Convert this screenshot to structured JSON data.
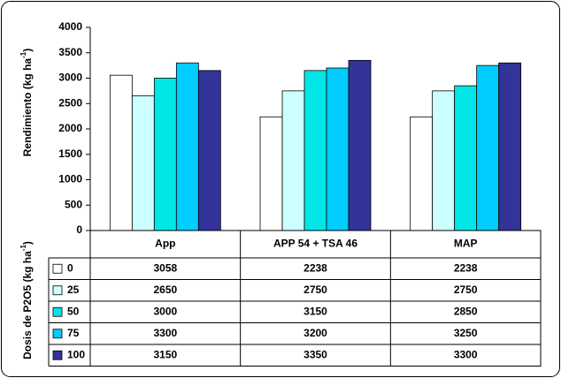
{
  "chart_data": {
    "type": "bar",
    "y_label": {
      "text": "Rendimiento (kg ha",
      "sup": "-1",
      "end": ")"
    },
    "legend_title": {
      "text": "Dosis de P2O5 (kg ha",
      "sup": "-1",
      "end": ")"
    },
    "categories": [
      "App",
      "APP 54 + TSA 46",
      "MAP"
    ],
    "series": [
      {
        "name": "0",
        "color": "#ffffff",
        "values": [
          3058,
          2238,
          2238
        ]
      },
      {
        "name": "25",
        "color": "#ccffff",
        "values": [
          2650,
          2750,
          2750
        ]
      },
      {
        "name": "50",
        "color": "#00e6e6",
        "values": [
          3000,
          3150,
          2850
        ]
      },
      {
        "name": "75",
        "color": "#00ccff",
        "values": [
          3300,
          3200,
          3250
        ]
      },
      {
        "name": "100",
        "color": "#333399",
        "values": [
          3150,
          3350,
          3300
        ]
      }
    ],
    "ylim": [
      0,
      4000
    ],
    "yticks": [
      0,
      500,
      1000,
      1500,
      2000,
      2500,
      3000,
      3500,
      4000
    ]
  }
}
